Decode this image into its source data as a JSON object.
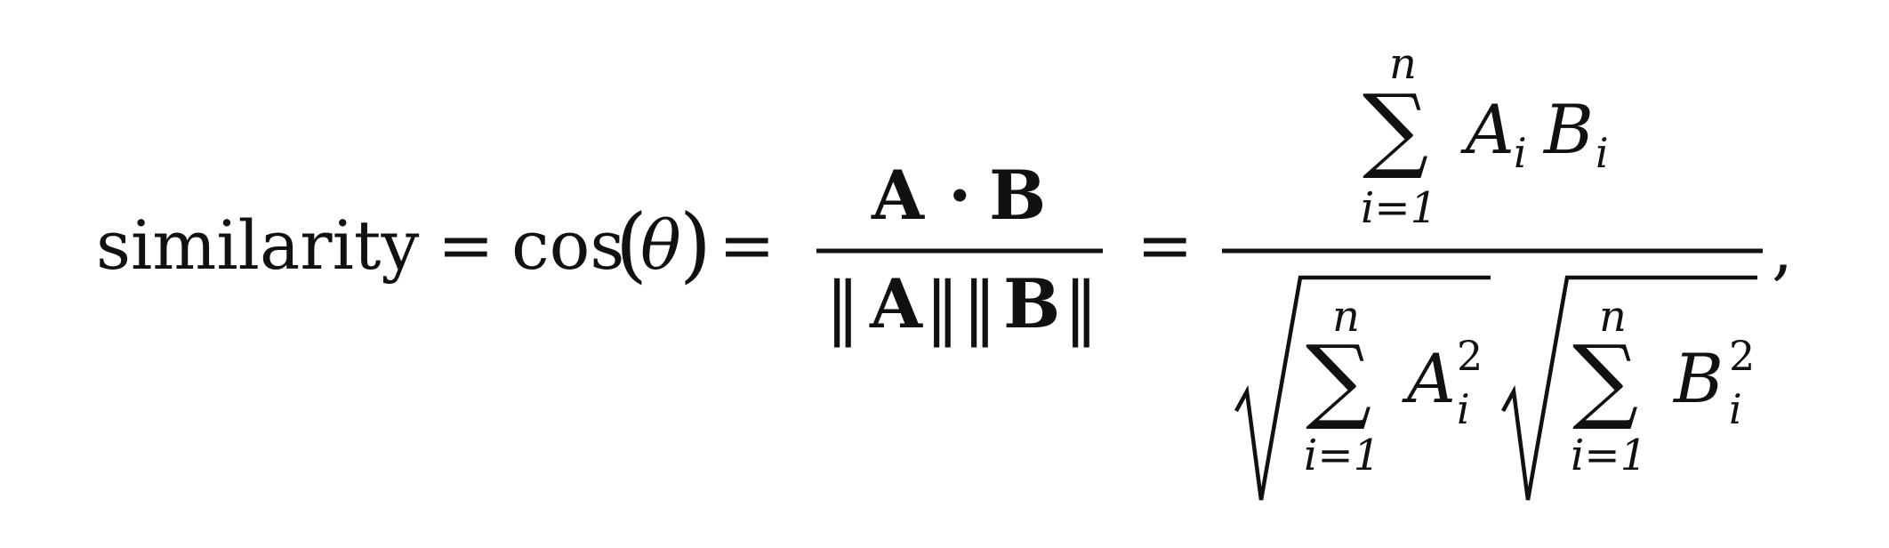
{
  "formula": {
    "lhs_word": "similarity",
    "eq": "=",
    "cos_fn": "cos",
    "lparen": "(",
    "theta": "θ",
    "rparen": ")",
    "frac1": {
      "num_a": "A",
      "dot": "·",
      "num_b": "B",
      "norm_bar": "‖",
      "den_a": "A",
      "den_b": "B"
    },
    "frac2": {
      "sum": "∑",
      "upper": "n",
      "lower": "i=1",
      "var_a": "A",
      "var_b": "B",
      "subscript": "i",
      "exponent": "2"
    },
    "comma": ","
  },
  "colors": {
    "ink": "#111111",
    "background": "#ffffff"
  }
}
